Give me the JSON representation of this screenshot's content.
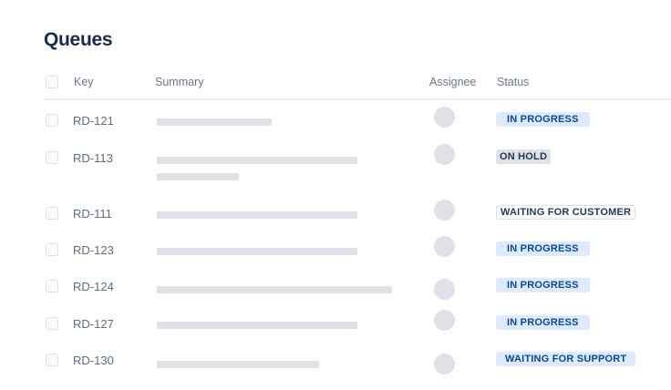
{
  "title": "Queues",
  "columns": {
    "key": "Key",
    "summary": "Summary",
    "assignee": "Assignee",
    "status": "Status"
  },
  "rows": [
    {
      "key": "RD-121",
      "status": "IN PROGRESS",
      "status_style": "blue"
    },
    {
      "key": "RD-113",
      "status": "ON HOLD",
      "status_style": "gray"
    },
    {
      "key": "RD-111",
      "status": "WAITING FOR CUSTOMER",
      "status_style": "white"
    },
    {
      "key": "RD-123",
      "status": "IN PROGRESS",
      "status_style": "blue"
    },
    {
      "key": "RD-124",
      "status": "IN PROGRESS",
      "status_style": "blue"
    },
    {
      "key": "RD-127",
      "status": "IN PROGRESS",
      "status_style": "blue"
    },
    {
      "key": "RD-130",
      "status": "WAITING FOR SUPPORT",
      "status_style": "blue"
    }
  ],
  "colors": {
    "blue_badge_bg": "#deebff",
    "blue_badge_text": "#0747a6",
    "gray_badge_bg": "#dfe1e6",
    "title": "#172b4d"
  }
}
